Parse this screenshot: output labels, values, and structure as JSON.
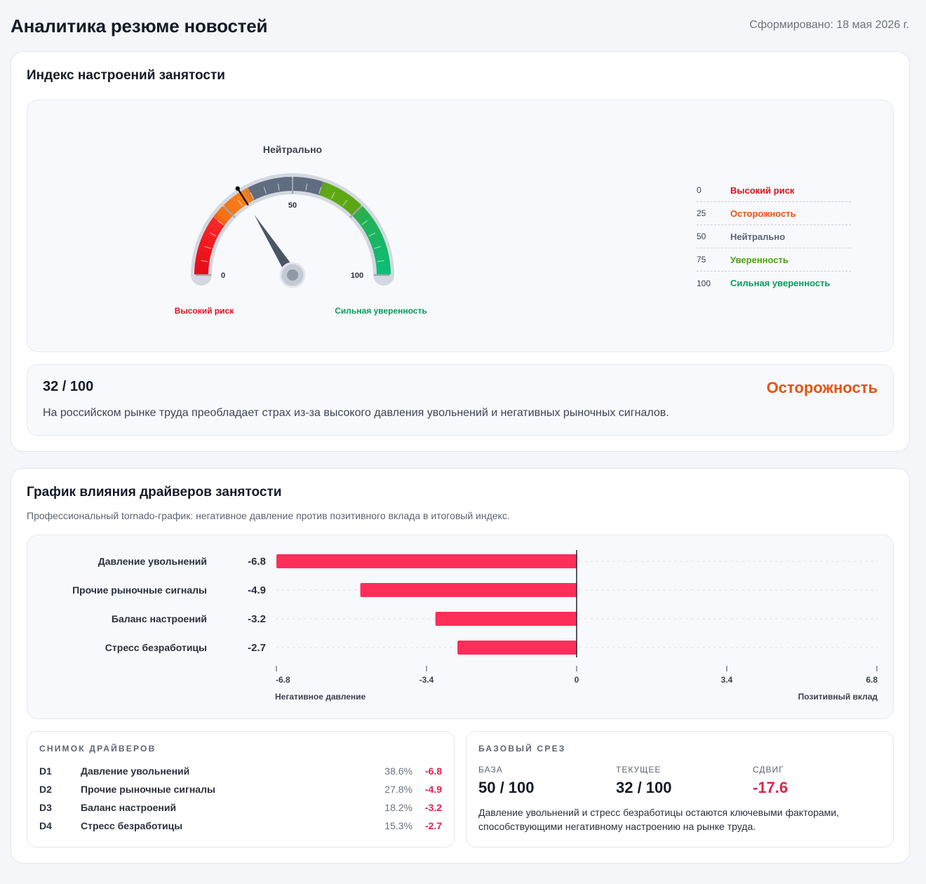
{
  "header": {
    "title": "Аналитика резюме новостей",
    "generated": "Сформировано: 18 мая 2026 г."
  },
  "colors": {
    "high_risk": "#d7141f",
    "caution": "#e8530e",
    "neutral": "#5b6477",
    "confidence": "#4d9e12",
    "strong_confidence": "#0a9a5c",
    "negative_bar": "#ff2d5a"
  },
  "sentiment": {
    "title": "Индекс настроений занятости",
    "gauge": {
      "value": 32,
      "min": 0,
      "max": 100,
      "top_label": "Нейтрально",
      "tick_min": "0",
      "tick_mid": "50",
      "tick_max": "100",
      "left_label": "Высокий риск",
      "right_label": "Сильная уверенность"
    },
    "legend": [
      {
        "value": "0",
        "label": "Высокий риск",
        "color": "#d7141f"
      },
      {
        "value": "25",
        "label": "Осторожность",
        "color": "#e8530e"
      },
      {
        "value": "50",
        "label": "Нейтрально",
        "color": "#5b6477"
      },
      {
        "value": "75",
        "label": "Уверенность",
        "color": "#4d9e12"
      },
      {
        "value": "100",
        "label": "Сильная уверенность",
        "color": "#0a9a5c"
      }
    ],
    "score": "32 / 100",
    "score_label": "Осторожность",
    "description": "На российском рынке труда преобладает страх из-за высокого давления увольнений и негативных рыночных сигналов."
  },
  "drivers": {
    "title": "График влияния драйверов занятости",
    "subtitle": "Профессиональный tornado-график: негативное давление против позитивного вклада в итоговый индекс.",
    "left_axis_label": "Негативное давление",
    "right_axis_label": "Позитивный вклад"
  },
  "chart_data": {
    "type": "bar",
    "orientation": "horizontal",
    "categories": [
      "Давление увольнений",
      "Прочие рыночные сигналы",
      "Баланс настроений",
      "Стресс безработицы"
    ],
    "values": [
      -6.8,
      -4.9,
      -3.2,
      -2.7
    ],
    "value_labels": [
      "-6.8",
      "-4.9",
      "-3.2",
      "-2.7"
    ],
    "xlim": [
      -6.8,
      6.8
    ],
    "x_ticks": [
      -6.8,
      -3.4,
      0,
      3.4,
      6.8
    ],
    "x_tick_labels": [
      "-6.8",
      "-3.4",
      "0",
      "3.4",
      "6.8"
    ],
    "xlabel_left": "Негативное давление",
    "xlabel_right": "Позитивный вклад",
    "grid": true
  },
  "snapshot": {
    "heading": "СНИМОК ДРАЙВЕРОВ",
    "rows": [
      {
        "id": "D1",
        "name": "Давление увольнений",
        "pct": "38.6%",
        "value": "-6.8"
      },
      {
        "id": "D2",
        "name": "Прочие рыночные сигналы",
        "pct": "27.8%",
        "value": "-4.9"
      },
      {
        "id": "D3",
        "name": "Баланс настроений",
        "pct": "18.2%",
        "value": "-3.2"
      },
      {
        "id": "D4",
        "name": "Стресс безработицы",
        "pct": "15.3%",
        "value": "-2.7"
      }
    ]
  },
  "baseline": {
    "heading": "БАЗОВЫЙ СРЕЗ",
    "base_label": "БАЗА",
    "base_value": "50 / 100",
    "current_label": "ТЕКУЩЕЕ",
    "current_value": "32 / 100",
    "shift_label": "СДВИГ",
    "shift_value": "-17.6",
    "note": "Давление увольнений и стресс безработицы остаются ключевыми факторами, способствующими негативному настроению на рынке труда."
  }
}
